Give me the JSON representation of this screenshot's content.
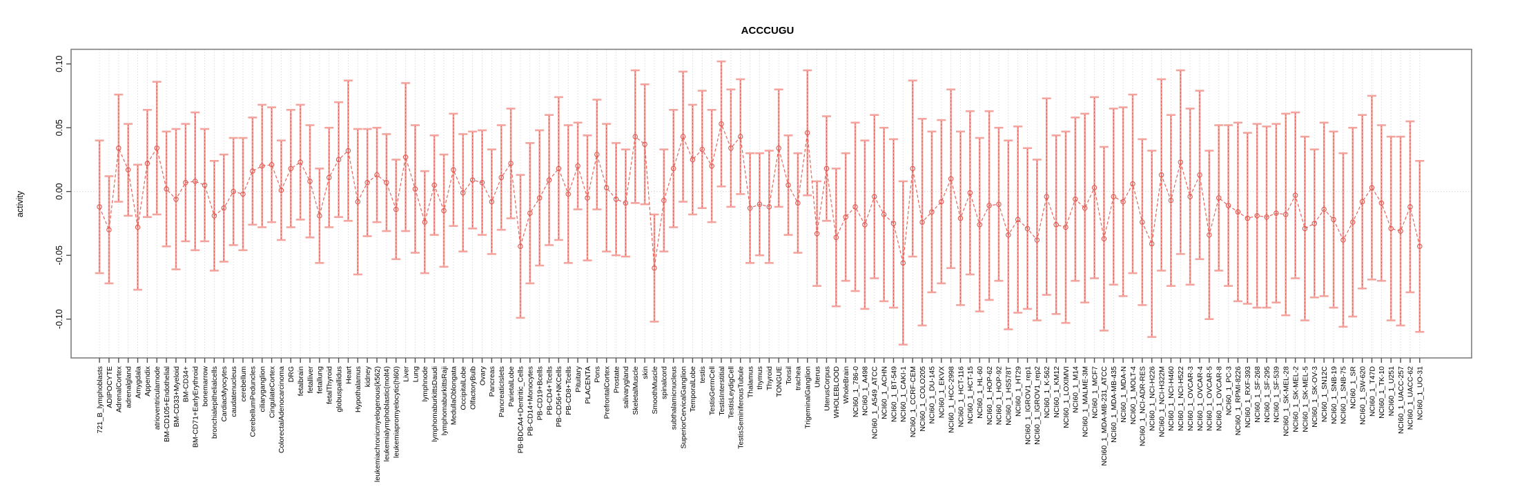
{
  "chart_data": {
    "type": "line",
    "title": "ACCCUGU",
    "ylabel": "activity",
    "xlabel": "",
    "ylim": [
      -0.13,
      0.112
    ],
    "yticks": [
      0.1,
      0.05,
      0.0,
      -0.05,
      -0.1
    ],
    "ytick_labels": [
      "0.10",
      "0.05",
      "0.00",
      "-0.05",
      "-0.10"
    ],
    "grid": "dotted vertical gridline at every category; dotted horizontal line at y=0",
    "legend_position": "none",
    "marker": "open-circle",
    "line_style": "dashed",
    "error_bars": "symmetric confidence intervals with caps",
    "series_name": "activity",
    "categories": [
      "721_B_lymphoblasts",
      "ADIPOCYTE",
      "AdrenalCortex",
      "adrenalgland",
      "Amygdala",
      "Appendix",
      "atrioventricularnode",
      "BM-CD105+Endothelial",
      "BM-CD33+Myeloid",
      "BM-CD34+",
      "BM-CD71+EarlyErythroid",
      "bonemarrow",
      "bronchialepithelialcells",
      "CardiacMyocytes",
      "caudatenucleus",
      "cerebellum",
      "CerebellumPeduncles",
      "ciliaryganglion",
      "CingulateCortex",
      "ColorectalAdenocarcinoma",
      "DRG",
      "fetalbrain",
      "fetalliver",
      "fetallung",
      "fetalThyroid",
      "globuspallidus",
      "Heart",
      "Hypothalamus",
      "kidney",
      "leukemiachronicmyelogenous(k562)",
      "leukemialymphoblastic(molt4)",
      "leukemiapromyelocytic(hl60)",
      "Liver",
      "Lung",
      "lymphnode",
      "lymphomaburkittsDaudi",
      "lymphomaburkittsRaji",
      "MedullaOblongata",
      "OccipitalLobe",
      "OlfactoryBulb",
      "Ovary",
      "Pancreas",
      "PancreaticIslets",
      "ParietalLobe",
      "PB-BDCA4+Dentritic_Cells",
      "PB-CD14+Monocytes",
      "PB-CD19+Bcells",
      "PB-CD4+Tcells",
      "PB-CD56+NKCells",
      "PB-CD8+Tcells",
      "Pituitary",
      "PLACENTA",
      "Pons",
      "PrefrontalCortex",
      "Prostate",
      "salivarygland",
      "SkeletalMuscle",
      "skin",
      "SmoothMuscle",
      "spinalcord",
      "subthalamicnucleus",
      "SuperiorCervicalGanglion",
      "TemporalLobe",
      "testis",
      "TestisGermCell",
      "TestisInterstitial",
      "TestisLeydigCell",
      "TestisSeminiferousTubule",
      "Thalamus",
      "thymus",
      "Thyroid",
      "TONGUE",
      "Tonsil",
      "trachea",
      "TrigeminalGanglion",
      "Uterus",
      "UterusCorpus",
      "WHOLEBLOOD",
      "WholeBrain",
      "NCI60_1_786-0",
      "NCI60_1_A498",
      "NCI60_1_A549_ATCC",
      "NCI60_1_ACHN",
      "NCI60_1_BT-549",
      "NCI60_1_CAKI-1",
      "NCI60_1_CCRF-CEM",
      "NCI60_1_COLO205",
      "NCI60_1_DU-145",
      "NCI60_1_EKVX",
      "NCI60_1_HCC-2998",
      "NCI60_1_HCT-116",
      "NCI60_1_HCT-15",
      "NCI60_1_HL-60",
      "NCI60_1_HOP-62",
      "NCI60_1_HOP-92",
      "NCI60_1_HS578T",
      "NCI60_1_HT29",
      "NCI60_1_IGROV1_rep1",
      "NCI60_1_IGROV1_rep2",
      "NCI60_1_K-562",
      "NCI60_1_KM12",
      "NCI60_1_LOXIMVI",
      "NCI60_1_M14",
      "NCI60_1_MALME-3M",
      "NCI60_1_MCF7",
      "NCI60_1_MDA-MB-231_ATCC",
      "NCI60_1_MDA-MB-435",
      "NCI60_1_MDA-N",
      "NCI60_1_MOLT-4",
      "NCI60_1_NCI-ADR-RES",
      "NCI60_1_NCI-H226",
      "NCI60_1_NCI-H322M",
      "NCI60_1_NCI-H460",
      "NCI60_1_NCI-H522",
      "NCI60_1_OVCAR-3",
      "NCI60_1_OVCAR-4",
      "NCI60_1_OVCAR-5",
      "NCI60_1_OVCAR-8",
      "NCI60_1_PC-3",
      "NCI60_1_RPMI-8226",
      "NCI60_1_RXF-393",
      "NCI60_1_SF-268",
      "NCI60_1_SF-295",
      "NCI60_1_SF-539",
      "NCI60_1_SK-MEL-28",
      "NCI60_1_SK-MEL-2",
      "NCI60_1_SK-MEL-5",
      "NCI60_1_SK-OV-3",
      "NCI60_1_SN12C",
      "NCI60_1_SNB-19",
      "NCI60_1_SNB-75",
      "NCI60_1_SR",
      "NCI60_1_SW-620",
      "NCI60_1_T47D",
      "NCI60_1_TK-10",
      "NCI60_1_U251",
      "NCI60_1_UACC-257",
      "NCI60_1_UACC-62",
      "NCI60_1_UO-31"
    ],
    "values": [
      -0.012,
      -0.03,
      0.034,
      0.017,
      -0.028,
      0.022,
      0.034,
      0.002,
      -0.006,
      0.007,
      0.008,
      0.005,
      -0.019,
      -0.013,
      0.0,
      -0.002,
      0.016,
      0.02,
      0.021,
      0.001,
      0.018,
      0.023,
      0.008,
      -0.019,
      0.011,
      0.025,
      0.032,
      -0.008,
      0.007,
      0.013,
      0.007,
      -0.014,
      0.027,
      0.002,
      -0.024,
      0.005,
      -0.015,
      0.017,
      -0.001,
      0.009,
      0.007,
      -0.008,
      0.011,
      0.022,
      -0.043,
      -0.017,
      -0.005,
      0.009,
      0.018,
      -0.002,
      0.02,
      -0.005,
      0.029,
      0.003,
      -0.006,
      -0.009,
      0.043,
      0.037,
      -0.06,
      -0.007,
      0.018,
      0.043,
      0.025,
      0.033,
      0.02,
      0.053,
      0.034,
      0.043,
      -0.013,
      -0.01,
      -0.012,
      0.034,
      0.005,
      -0.009,
      0.046,
      -0.033,
      0.018,
      -0.036,
      -0.02,
      -0.012,
      -0.026,
      -0.004,
      -0.018,
      -0.025,
      -0.056,
      0.018,
      -0.024,
      -0.016,
      -0.008,
      0.01,
      -0.021,
      -0.001,
      -0.026,
      -0.011,
      -0.01,
      -0.034,
      -0.022,
      -0.029,
      -0.038,
      -0.004,
      -0.026,
      -0.028,
      -0.006,
      -0.013,
      0.003,
      -0.037,
      -0.004,
      -0.008,
      0.006,
      -0.024,
      -0.041,
      0.013,
      -0.007,
      0.023,
      -0.004,
      0.013,
      -0.034,
      -0.005,
      -0.011,
      -0.016,
      -0.021,
      -0.019,
      -0.02,
      -0.017,
      -0.018,
      -0.003,
      -0.029,
      -0.025,
      -0.014,
      -0.022,
      -0.038,
      -0.024,
      -0.008,
      0.003,
      -0.009,
      -0.029,
      -0.031,
      -0.012,
      -0.043
    ],
    "ci_high": [
      0.04,
      0.012,
      0.076,
      0.053,
      0.021,
      0.064,
      0.086,
      0.047,
      0.049,
      0.053,
      0.062,
      0.049,
      0.024,
      0.029,
      0.042,
      0.042,
      0.058,
      0.068,
      0.066,
      0.04,
      0.064,
      0.068,
      0.052,
      0.018,
      0.05,
      0.07,
      0.087,
      0.049,
      0.049,
      0.05,
      0.045,
      0.025,
      0.085,
      0.052,
      0.016,
      0.044,
      0.029,
      0.061,
      0.045,
      0.047,
      0.048,
      0.033,
      0.052,
      0.065,
      0.013,
      0.038,
      0.048,
      0.06,
      0.074,
      0.052,
      0.054,
      0.044,
      0.072,
      0.053,
      0.038,
      0.033,
      0.095,
      0.084,
      -0.018,
      0.033,
      0.064,
      0.094,
      0.068,
      0.079,
      0.064,
      0.102,
      0.08,
      0.088,
      0.03,
      0.03,
      0.032,
      0.08,
      0.044,
      0.03,
      0.095,
      0.008,
      0.059,
      0.018,
      0.03,
      0.054,
      0.04,
      0.06,
      0.05,
      0.041,
      0.008,
      0.087,
      0.057,
      0.047,
      0.056,
      0.08,
      0.047,
      0.063,
      0.042,
      0.063,
      0.05,
      0.04,
      0.051,
      0.034,
      0.025,
      0.073,
      0.044,
      0.047,
      0.058,
      0.061,
      0.074,
      0.035,
      0.065,
      0.066,
      0.076,
      0.041,
      0.032,
      0.088,
      0.06,
      0.095,
      0.065,
      0.079,
      0.032,
      0.052,
      0.052,
      0.054,
      0.046,
      0.053,
      0.051,
      0.053,
      0.061,
      0.062,
      0.043,
      0.033,
      0.054,
      0.047,
      0.03,
      0.05,
      0.06,
      0.075,
      0.052,
      0.043,
      0.043,
      0.055,
      0.024
    ],
    "ci_low": [
      -0.064,
      -0.072,
      -0.008,
      -0.019,
      -0.077,
      -0.02,
      -0.018,
      -0.043,
      -0.061,
      -0.039,
      -0.046,
      -0.039,
      -0.062,
      -0.055,
      -0.042,
      -0.046,
      -0.026,
      -0.028,
      -0.024,
      -0.038,
      -0.028,
      -0.022,
      -0.036,
      -0.056,
      -0.028,
      -0.02,
      -0.023,
      -0.065,
      -0.035,
      -0.024,
      -0.031,
      -0.053,
      -0.031,
      -0.048,
      -0.064,
      -0.034,
      -0.059,
      -0.027,
      -0.047,
      -0.029,
      -0.034,
      -0.049,
      -0.03,
      -0.021,
      -0.099,
      -0.072,
      -0.058,
      -0.042,
      -0.038,
      -0.056,
      -0.014,
      -0.054,
      -0.014,
      -0.047,
      -0.05,
      -0.051,
      -0.009,
      -0.01,
      -0.102,
      -0.047,
      -0.028,
      -0.008,
      -0.018,
      -0.013,
      -0.024,
      0.004,
      -0.012,
      -0.002,
      -0.056,
      -0.05,
      -0.056,
      -0.012,
      -0.034,
      -0.048,
      -0.003,
      -0.074,
      -0.023,
      -0.09,
      -0.07,
      -0.078,
      -0.092,
      -0.068,
      -0.086,
      -0.091,
      -0.12,
      -0.051,
      -0.105,
      -0.079,
      -0.072,
      -0.06,
      -0.089,
      -0.065,
      -0.094,
      -0.085,
      -0.07,
      -0.108,
      -0.095,
      -0.092,
      -0.101,
      -0.081,
      -0.096,
      -0.103,
      -0.07,
      -0.087,
      -0.068,
      -0.109,
      -0.073,
      -0.082,
      -0.064,
      -0.089,
      -0.114,
      -0.062,
      -0.074,
      -0.049,
      -0.073,
      -0.053,
      -0.1,
      -0.062,
      -0.074,
      -0.086,
      -0.088,
      -0.091,
      -0.091,
      -0.087,
      -0.097,
      -0.068,
      -0.101,
      -0.083,
      -0.082,
      -0.091,
      -0.106,
      -0.098,
      -0.076,
      -0.069,
      -0.07,
      -0.101,
      -0.105,
      -0.079,
      -0.11
    ]
  },
  "colors": {
    "error_bar_light": "#f5a39d",
    "error_bar_dark": "#e0564f",
    "series_line": "#e3645d",
    "point_stroke": "#e0564f",
    "gridline": "#d9d9d9",
    "zero_line": "#cfcfcf",
    "plot_border": "#7d7d7d",
    "tick": "#4d4d4d",
    "label_text": "#000000"
  }
}
